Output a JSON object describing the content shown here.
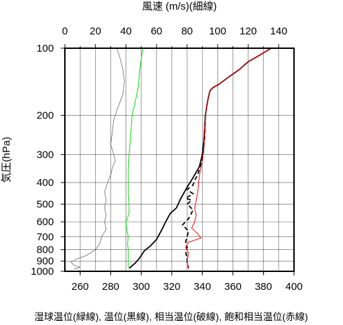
{
  "chart_data": {
    "type": "line",
    "top_axis_title": "風速 (m/s)(細線)",
    "left_axis_title": "気圧(hPa)",
    "bottom_caption": "湿球温位(緑線), 温位(黒線), 相当温位(破線), 飽和相当温位(赤線)",
    "top_ticks": [
      "0",
      "20",
      "40",
      "60",
      "80",
      "100",
      "120",
      "140"
    ],
    "bottom_ticks": [
      "260",
      "280",
      "300",
      "320",
      "340",
      "360",
      "380",
      "400"
    ],
    "left_ticks": [
      "100",
      "200",
      "300",
      "400",
      "500",
      "600",
      "700",
      "800",
      "900",
      "1000"
    ],
    "temp_range": [
      250,
      400
    ],
    "wind_range": [
      0,
      150
    ],
    "pressure_range": [
      100,
      1000
    ],
    "y_scale": "log",
    "grid": true,
    "series": [
      {
        "name": "湿球温位",
        "color": "#00dd00",
        "style": "solid",
        "axis": "temperature",
        "points": [
          [
            301,
            100
          ],
          [
            299,
            125
          ],
          [
            298,
            150
          ],
          [
            296,
            175
          ],
          [
            294,
            200
          ],
          [
            293,
            250
          ],
          [
            292,
            300
          ],
          [
            291.5,
            350
          ],
          [
            291.5,
            400
          ],
          [
            291.5,
            450
          ],
          [
            292,
            500
          ],
          [
            292,
            550
          ],
          [
            290,
            600
          ],
          [
            290.5,
            650
          ],
          [
            291.5,
            700
          ],
          [
            291,
            750
          ],
          [
            291.5,
            800
          ],
          [
            291.5,
            850
          ],
          [
            291.5,
            900
          ],
          [
            291.5,
            960
          ]
        ]
      },
      {
        "name": "温位",
        "color": "#000000",
        "style": "solid",
        "axis": "temperature",
        "points": [
          [
            385,
            100
          ],
          [
            380,
            105
          ],
          [
            375,
            110
          ],
          [
            370,
            115
          ],
          [
            364,
            125
          ],
          [
            357,
            135
          ],
          [
            351,
            145
          ],
          [
            347,
            150
          ],
          [
            345,
            155
          ],
          [
            344,
            165
          ],
          [
            343,
            180
          ],
          [
            342,
            200
          ],
          [
            341.5,
            230
          ],
          [
            341,
            260
          ],
          [
            340,
            300
          ],
          [
            338,
            340
          ],
          [
            334,
            380
          ],
          [
            330,
            420
          ],
          [
            326,
            470
          ],
          [
            323,
            520
          ],
          [
            319,
            550
          ],
          [
            316,
            600
          ],
          [
            314,
            640
          ],
          [
            312,
            680
          ],
          [
            310,
            720
          ],
          [
            306,
            770
          ],
          [
            302,
            810
          ],
          [
            299,
            870
          ],
          [
            296,
            920
          ],
          [
            292,
            970
          ]
        ]
      },
      {
        "name": "相当温位",
        "color": "#000000",
        "style": "dashed",
        "axis": "temperature",
        "points": [
          [
            342,
            200
          ],
          [
            341.5,
            250
          ],
          [
            340.5,
            300
          ],
          [
            338.5,
            340
          ],
          [
            337,
            370
          ],
          [
            335,
            390
          ],
          [
            334,
            410
          ],
          [
            330,
            430
          ],
          [
            334,
            450
          ],
          [
            329,
            470
          ],
          [
            333,
            480
          ],
          [
            330,
            500
          ],
          [
            334,
            530
          ],
          [
            331,
            580
          ],
          [
            327,
            620
          ],
          [
            331,
            660
          ],
          [
            330,
            700
          ],
          [
            329,
            740
          ],
          [
            330,
            780
          ],
          [
            329,
            820
          ],
          [
            330,
            870
          ],
          [
            330,
            920
          ],
          [
            331,
            970
          ]
        ]
      },
      {
        "name": "飽和相当温位",
        "color": "#ff0000",
        "style": "solid",
        "axis": "temperature",
        "points": [
          [
            385,
            100
          ],
          [
            380,
            105
          ],
          [
            375,
            110
          ],
          [
            370,
            115
          ],
          [
            364,
            125
          ],
          [
            357,
            135
          ],
          [
            351,
            145
          ],
          [
            347,
            150
          ],
          [
            345,
            155
          ],
          [
            344,
            165
          ],
          [
            343,
            180
          ],
          [
            342,
            200
          ],
          [
            341.5,
            240
          ],
          [
            341,
            280
          ],
          [
            340,
            320
          ],
          [
            338.5,
            360
          ],
          [
            337.5,
            400
          ],
          [
            337,
            440
          ],
          [
            336,
            480
          ],
          [
            335,
            520
          ],
          [
            336,
            560
          ],
          [
            335,
            600
          ],
          [
            333,
            640
          ],
          [
            337,
            680
          ],
          [
            339,
            710
          ],
          [
            331,
            740
          ],
          [
            329,
            780
          ],
          [
            331,
            830
          ],
          [
            330,
            900
          ],
          [
            331,
            970
          ]
        ]
      },
      {
        "name": "風速",
        "color": "#555555",
        "style": "thin",
        "axis": "wind",
        "points": [
          [
            34,
            100
          ],
          [
            36,
            110
          ],
          [
            38,
            125
          ],
          [
            39,
            140
          ],
          [
            38,
            160
          ],
          [
            36,
            175
          ],
          [
            34,
            190
          ],
          [
            32,
            210
          ],
          [
            31,
            240
          ],
          [
            30,
            270
          ],
          [
            32,
            300
          ],
          [
            33,
            320
          ],
          [
            31,
            345
          ],
          [
            30,
            370
          ],
          [
            28,
            400
          ],
          [
            26,
            440
          ],
          [
            27,
            480
          ],
          [
            26,
            520
          ],
          [
            27,
            560
          ],
          [
            26,
            600
          ],
          [
            27,
            650
          ],
          [
            24,
            700
          ],
          [
            23,
            750
          ],
          [
            20,
            800
          ],
          [
            14,
            850
          ],
          [
            8,
            880
          ],
          [
            4,
            910
          ],
          [
            6,
            940
          ],
          [
            10,
            960
          ],
          [
            6,
            975
          ]
        ]
      }
    ]
  }
}
